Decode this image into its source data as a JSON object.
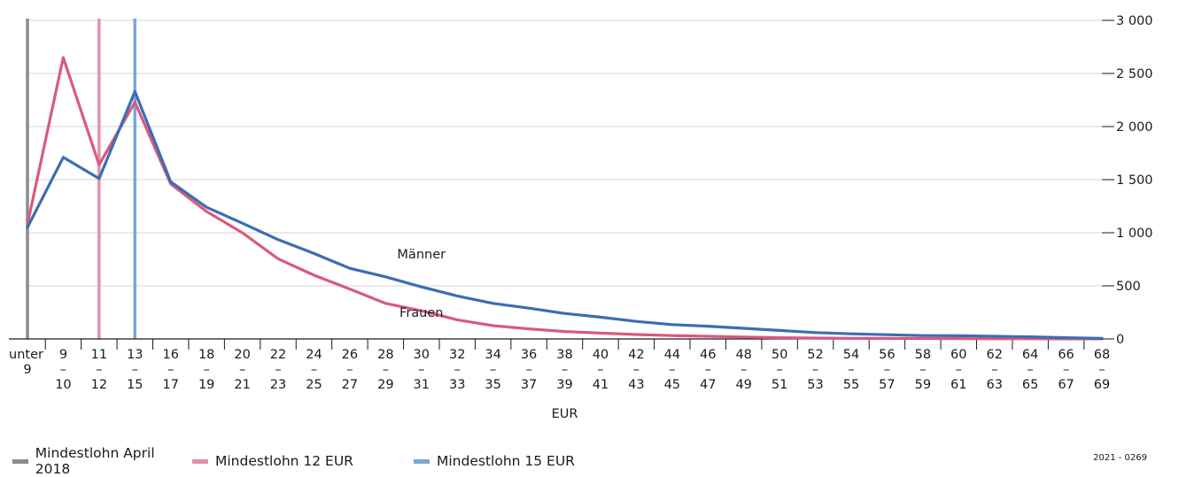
{
  "chart_data": {
    "type": "line",
    "categories": [
      [
        "unter",
        "9"
      ],
      [
        "9",
        "–",
        "10"
      ],
      [
        "11",
        "–",
        "12"
      ],
      [
        "13",
        "–",
        "15"
      ],
      [
        "16",
        "–",
        "17"
      ],
      [
        "18",
        "–",
        "19"
      ],
      [
        "20",
        "–",
        "21"
      ],
      [
        "22",
        "–",
        "23"
      ],
      [
        "24",
        "–",
        "25"
      ],
      [
        "26",
        "–",
        "27"
      ],
      [
        "28",
        "–",
        "29"
      ],
      [
        "30",
        "–",
        "31"
      ],
      [
        "32",
        "–",
        "33"
      ],
      [
        "34",
        "–",
        "35"
      ],
      [
        "36",
        "–",
        "37"
      ],
      [
        "38",
        "–",
        "39"
      ],
      [
        "40",
        "–",
        "41"
      ],
      [
        "42",
        "–",
        "43"
      ],
      [
        "44",
        "–",
        "45"
      ],
      [
        "46",
        "–",
        "47"
      ],
      [
        "48",
        "–",
        "49"
      ],
      [
        "50",
        "–",
        "51"
      ],
      [
        "52",
        "–",
        "53"
      ],
      [
        "54",
        "–",
        "55"
      ],
      [
        "56",
        "–",
        "57"
      ],
      [
        "58",
        "–",
        "59"
      ],
      [
        "60",
        "–",
        "61"
      ],
      [
        "62",
        "–",
        "63"
      ],
      [
        "64",
        "–",
        "65"
      ],
      [
        "66",
        "–",
        "67"
      ],
      [
        "68",
        "–",
        "69"
      ]
    ],
    "xlabel": "EUR",
    "ylabel": "",
    "ylim": [
      0,
      3000
    ],
    "yticks": [
      0,
      500,
      1000,
      1500,
      2000,
      2500,
      3000
    ],
    "ytick_labels": [
      "0",
      "500",
      "1 000",
      "1 500",
      "2 000",
      "2 500",
      "3 000"
    ],
    "series": [
      {
        "name": "Männer",
        "color": "#3c6db4",
        "values": [
          1050,
          1710,
          1510,
          2330,
          1480,
          1240,
          1090,
          935,
          805,
          665,
          585,
          490,
          405,
          335,
          290,
          240,
          205,
          165,
          135,
          120,
          100,
          80,
          60,
          48,
          40,
          32,
          30,
          25,
          20,
          12,
          5
        ]
      },
      {
        "name": "Frauen",
        "color": "#d95a7b",
        "values": [
          1080,
          2650,
          1640,
          2230,
          1460,
          1200,
          1000,
          755,
          600,
          470,
          335,
          265,
          180,
          125,
          95,
          70,
          55,
          42,
          32,
          25,
          18,
          12,
          8,
          6,
          5,
          4,
          3,
          2,
          2,
          1,
          1
        ]
      }
    ],
    "annotations": [
      {
        "text": "Männer",
        "series": "Männer",
        "category_index": 11,
        "value": 760
      },
      {
        "text": "Frauen",
        "series": "Frauen",
        "category_index": 11,
        "value": 210
      }
    ],
    "reference_lines": [
      {
        "name": "Mindestlohn April 2018",
        "color": "#8c8c8c",
        "category_index": 0
      },
      {
        "name": "Mindestlohn 12 EUR",
        "color": "#e58fa6",
        "category_index": 2
      },
      {
        "name": "Mindestlohn 15 EUR",
        "color": "#7aa6da",
        "category_index": 3
      }
    ],
    "legend_position": "bottom-left",
    "grid": "horizontal"
  },
  "source_id": "2021 - 0269"
}
